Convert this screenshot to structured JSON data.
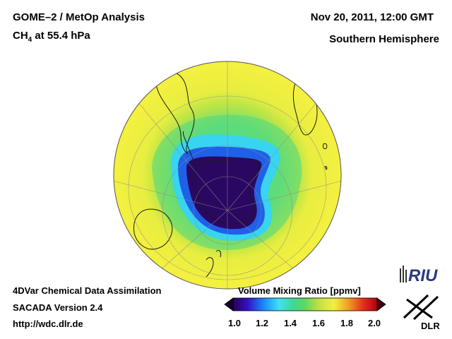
{
  "header": {
    "title": "GOME–2 / MetOp Analysis",
    "species_main": "CH",
    "species_sub": "4",
    "species_rest": " at 55.4 hPa",
    "datetime": "Nov 20, 2011, 12:00 GMT",
    "hemisphere": "Southern Hemisphere"
  },
  "footer": {
    "line1": "4DVar Chemical Data Assimilation",
    "line2": "SACADA Version 2.4",
    "line3": "http://wdc.dlr.de"
  },
  "colorbar": {
    "title": "Volume Mixing Ratio [ppmv]",
    "ticks": [
      "1.0",
      "1.2",
      "1.4",
      "1.6",
      "1.8",
      "2.0"
    ],
    "colors": [
      "#2a0050",
      "#3010c8",
      "#1e90ff",
      "#40e0f0",
      "#40d890",
      "#60d860",
      "#c8e040",
      "#f0f040",
      "#f0a020",
      "#e83020",
      "#b00010"
    ]
  },
  "logos": {
    "riu": "RIU",
    "dlr": "DLR"
  }
}
